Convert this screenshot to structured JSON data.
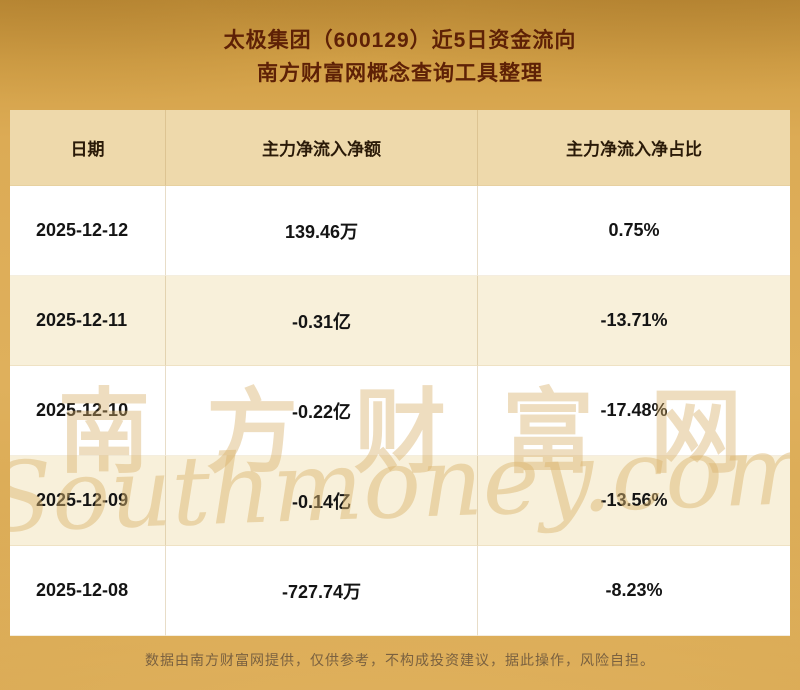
{
  "page": {
    "title_line1": "太极集团（600129）近5日资金流向",
    "title_line2": "南方财富网概念查询工具整理",
    "footer": "数据由南方财富网提供，仅供参考，不构成投资建议，据此操作，风险自担。"
  },
  "watermark": {
    "cn": "南方财富网",
    "en": "Southmoney.com"
  },
  "colors": {
    "background_gold": "#dcab55",
    "title_text": "#5e2106",
    "header_row_bg": "#eed9ab",
    "row_alt_bg": "#f8f0da",
    "body_text": "#141414",
    "footer_text": "#7a6140",
    "watermark_gold": "#d6ae66"
  },
  "chart_data": {
    "type": "table",
    "title": "太极集团（600129）近5日资金流向",
    "columns": [
      "日期",
      "主力净流入净额",
      "主力净流入净占比"
    ],
    "rows": [
      [
        "2025-12-12",
        "139.46万",
        "0.75%"
      ],
      [
        "2025-12-11",
        "-0.31亿",
        "-13.71%"
      ],
      [
        "2025-12-10",
        "-0.22亿",
        "-17.48%"
      ],
      [
        "2025-12-09",
        "-0.14亿",
        "-13.56%"
      ],
      [
        "2025-12-08",
        "-727.74万",
        "-8.23%"
      ]
    ]
  }
}
